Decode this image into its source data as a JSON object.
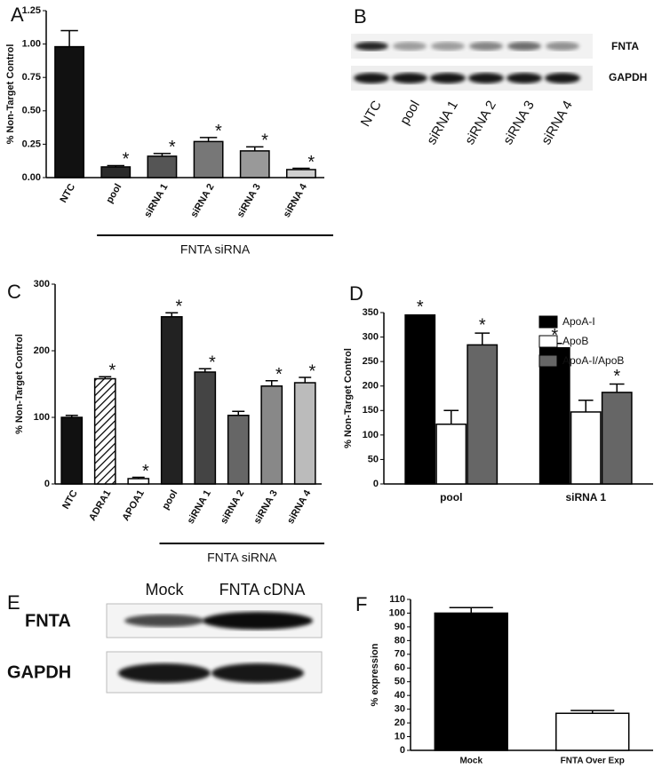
{
  "chart_data": [
    {
      "panel": "A",
      "type": "bar",
      "ylabel": "% Non-Target Control",
      "categories": [
        "NTC",
        "pool",
        "siRNA 1",
        "siRNA 2",
        "siRNA 3",
        "siRNA 4"
      ],
      "values": [
        0.98,
        0.08,
        0.16,
        0.27,
        0.2,
        0.06
      ],
      "errors": [
        0.12,
        0.01,
        0.02,
        0.03,
        0.03,
        0.01
      ],
      "colors": [
        "#111111",
        "#2a2a2a",
        "#555555",
        "#777777",
        "#999999",
        "#d0d0d0"
      ],
      "stars": [
        null,
        "*",
        "*",
        "*",
        "*",
        "*"
      ],
      "group_label": "FNTA siRNA",
      "ylim": [
        0,
        1.25
      ],
      "yticks": [
        {
          "value": 0,
          "label": "0.00"
        },
        {
          "value": 0.25,
          "label": "0.25"
        },
        {
          "value": 0.5,
          "label": "0.50"
        },
        {
          "value": 0.75,
          "label": "0.75"
        },
        {
          "value": 1,
          "label": "1.00"
        },
        {
          "value": 1.25,
          "label": "1.25"
        }
      ]
    },
    {
      "panel": "C",
      "type": "bar",
      "ylabel": "% Non-Target Control",
      "categories": [
        "NTC",
        "ADRA1",
        "APOA1",
        "pool",
        "siRNA 1",
        "siRNA 2",
        "siRNA 3",
        "siRNA 4"
      ],
      "values": [
        100,
        158,
        8,
        251,
        168,
        103,
        147,
        152
      ],
      "errors": [
        3,
        3,
        2,
        6,
        5,
        6,
        8,
        8
      ],
      "colors": [
        "#111111",
        "hatch",
        "#ffffff",
        "#222222",
        "#444444",
        "#666666",
        "#888888",
        "#bbbbbb"
      ],
      "stars": [
        null,
        "*",
        "*",
        "*",
        "*",
        null,
        "*",
        "*"
      ],
      "group_label": "FNTA siRNA",
      "ylim": [
        0,
        300
      ],
      "yticks": [
        0,
        100,
        200,
        300
      ]
    },
    {
      "panel": "D",
      "type": "grouped_bar",
      "ylabel": "% Non-Target Control",
      "categories": [
        "pool",
        "siRNA 1"
      ],
      "series": [
        {
          "name": "ApoA-I",
          "color": "#000000",
          "values": [
            345,
            278
          ],
          "errors": [
            0,
            9
          ],
          "stars": [
            "*",
            "*"
          ]
        },
        {
          "name": "ApoB",
          "color": "#ffffff",
          "values": [
            122,
            147
          ],
          "errors": [
            28,
            24
          ],
          "stars": [
            null,
            null
          ]
        },
        {
          "name": "ApoA-I/ApoB",
          "color": "#666666",
          "values": [
            284,
            187
          ],
          "errors": [
            24,
            17
          ],
          "stars": [
            "*",
            "*"
          ]
        }
      ],
      "ylim": [
        0,
        350
      ],
      "yticks": [
        0,
        50,
        100,
        150,
        200,
        250,
        300,
        350
      ],
      "legend": "upper right"
    },
    {
      "panel": "F",
      "type": "bar",
      "ylabel": "% expression",
      "categories": [
        "Mock",
        "FNTA Over Exp"
      ],
      "values": [
        100,
        27
      ],
      "errors": [
        4,
        2
      ],
      "colors": [
        "#000000",
        "#ffffff"
      ],
      "ylim": [
        0,
        110
      ],
      "yticks": [
        0,
        10,
        20,
        30,
        40,
        50,
        60,
        70,
        80,
        90,
        100,
        110
      ]
    }
  ],
  "blots": [
    {
      "panel": "B",
      "rows": [
        "FNTA",
        "GAPDH"
      ],
      "lanes": [
        "NTC",
        "pool",
        "siRNA 1",
        "siRNA 2",
        "siRNA 3",
        "siRNA 4"
      ]
    },
    {
      "panel": "E",
      "rows": [
        "FNTA",
        "GAPDH"
      ],
      "lanes": [
        "Mock",
        "FNTA cDNA"
      ]
    }
  ]
}
